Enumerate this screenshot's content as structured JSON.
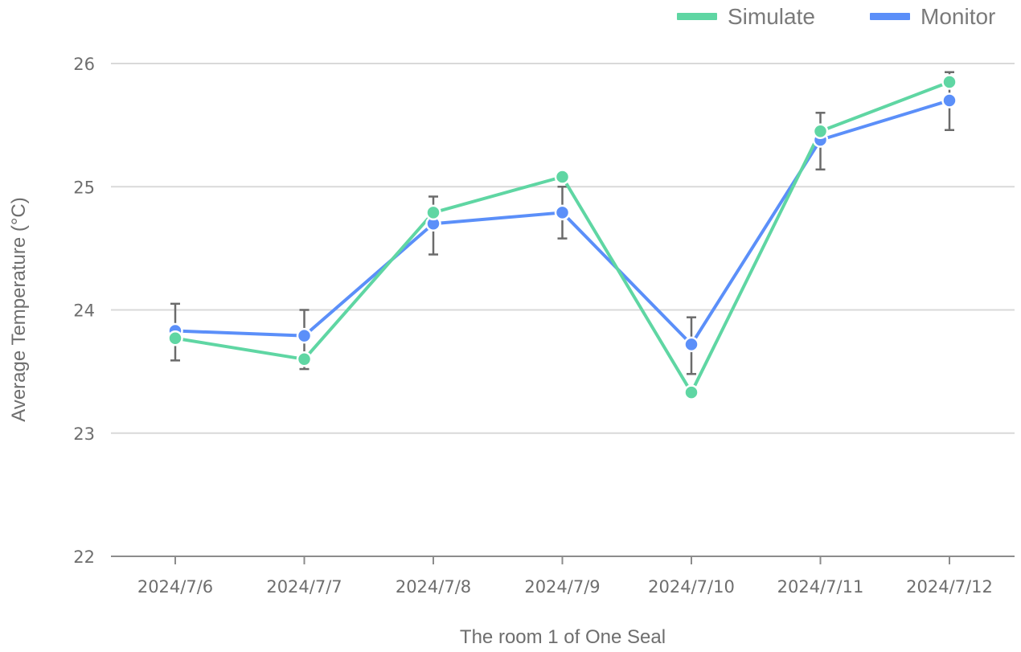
{
  "chart_data": {
    "type": "line",
    "title": "",
    "xlabel": "The room 1 of One Seal",
    "ylabel": "Average Temperature (°C)",
    "categories": [
      "2024/7/6",
      "2024/7/7",
      "2024/7/8",
      "2024/7/9",
      "2024/7/10",
      "2024/7/11",
      "2024/7/12"
    ],
    "ylim": [
      22,
      26
    ],
    "yticks": [
      22,
      23,
      24,
      25,
      26
    ],
    "grid": true,
    "legend_position": "top-right",
    "series": [
      {
        "name": "Simulate",
        "color": "#5fd6a3",
        "values": [
          23.77,
          23.6,
          24.79,
          25.08,
          23.33,
          25.45,
          25.85
        ]
      },
      {
        "name": "Monitor",
        "color": "#5b8ff9",
        "values": [
          23.83,
          23.79,
          24.7,
          24.79,
          23.72,
          25.38,
          25.7
        ],
        "error_low": [
          23.59,
          23.52,
          24.45,
          24.58,
          23.48,
          25.14,
          25.46
        ],
        "error_high": [
          24.05,
          24.0,
          24.92,
          25.0,
          23.94,
          25.6,
          25.93
        ]
      }
    ]
  }
}
